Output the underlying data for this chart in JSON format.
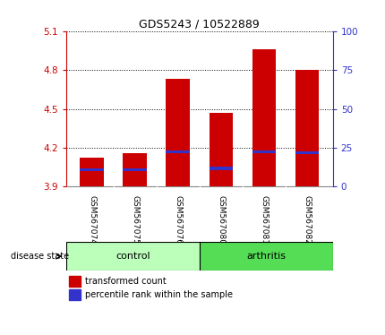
{
  "title": "GDS5243 / 10522889",
  "samples": [
    "GSM567074",
    "GSM567075",
    "GSM567076",
    "GSM567080",
    "GSM567081",
    "GSM567082"
  ],
  "groups": [
    "control",
    "control",
    "control",
    "arthritis",
    "arthritis",
    "arthritis"
  ],
  "transformed_counts": [
    4.12,
    4.16,
    4.73,
    4.47,
    4.96,
    4.8
  ],
  "percentile_ranks": [
    4.03,
    4.03,
    4.17,
    4.04,
    4.17,
    4.16
  ],
  "bar_bottom": 3.9,
  "ylim_left": [
    3.9,
    5.1
  ],
  "ylim_right": [
    0,
    100
  ],
  "yticks_left": [
    3.9,
    4.2,
    4.5,
    4.8,
    5.1
  ],
  "yticks_right": [
    0,
    25,
    50,
    75,
    100
  ],
  "bar_color": "#cc0000",
  "blue_color": "#3333cc",
  "control_color": "#bbffbb",
  "arthritis_color": "#55dd55",
  "label_bg_color": "#cccccc",
  "axis_color_left": "#cc0000",
  "axis_color_right": "#3333cc",
  "bar_width": 0.55,
  "blue_bar_height": 0.022
}
